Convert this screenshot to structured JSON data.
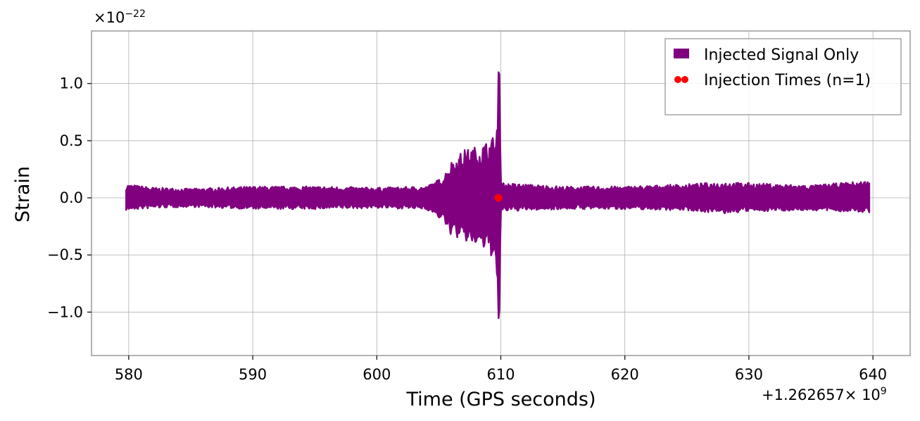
{
  "chart_data": {
    "type": "line",
    "xlabel": "Time (GPS seconds)",
    "ylabel": "Strain",
    "x_offset_label": "+1.262657",
    "x_offset_suffix": "× 10",
    "x_offset_exponent": "9",
    "y_scale_prefix": "×10",
    "y_scale_exponent": "−22",
    "xlim": [
      577,
      643
    ],
    "ylim": [
      -1.38,
      1.46
    ],
    "y_unit_multiplier": "1e-22",
    "x_ticks": [
      580,
      590,
      600,
      610,
      620,
      630,
      640
    ],
    "x_tick_labels": [
      "580",
      "590",
      "600",
      "610",
      "620",
      "630",
      "640"
    ],
    "y_ticks": [
      1.0,
      0.5,
      0.0,
      -0.5,
      -1.0
    ],
    "y_tick_labels": [
      "1.0",
      "0.5",
      "0.0",
      "−0.5",
      "−1.0"
    ],
    "grid": true,
    "legend_position": "top-right",
    "series": [
      {
        "name": "Injected Signal Only",
        "kind": "line",
        "color": "#800080",
        "description": "strain envelope",
        "x": [
          579.8,
          582,
          585,
          590,
          595,
          600,
          604,
          605.3,
          606,
          607,
          608,
          609,
          609.5,
          609.75,
          609.85,
          610.0,
          612,
          615,
          620,
          625,
          628,
          630,
          635,
          639.7
        ],
        "upper": [
          0.12,
          0.09,
          0.08,
          0.1,
          0.1,
          0.09,
          0.1,
          0.18,
          0.32,
          0.42,
          0.45,
          0.5,
          0.55,
          0.6,
          1.35,
          0.13,
          0.12,
          0.1,
          0.1,
          0.12,
          0.14,
          0.13,
          0.11,
          0.15
        ],
        "lower": [
          -0.11,
          -0.09,
          -0.08,
          -0.1,
          -0.1,
          -0.09,
          -0.1,
          -0.2,
          -0.33,
          -0.38,
          -0.42,
          -0.48,
          -0.55,
          -0.7,
          -1.23,
          -0.12,
          -0.11,
          -0.1,
          -0.1,
          -0.11,
          -0.14,
          -0.12,
          -0.11,
          -0.13
        ]
      },
      {
        "name": "Injection Times (n=1)",
        "kind": "scatter",
        "color": "#ff0000",
        "x": [
          609.8
        ],
        "y": [
          0.0
        ]
      }
    ]
  }
}
